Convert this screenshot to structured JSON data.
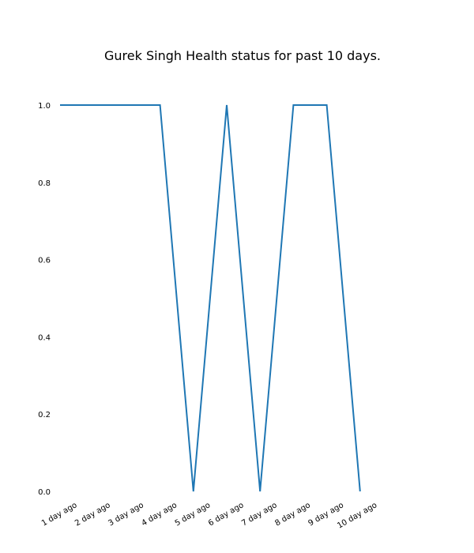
{
  "chart_data": {
    "type": "line",
    "title": "Gurek Singh Health status for past 10 days.",
    "xlabel": "",
    "ylabel": "",
    "categories": [
      "1 day ago",
      "2 day ago",
      "3 day ago",
      "4 day ago",
      "5 day ago",
      "6 day ago",
      "7 day ago",
      "8 day ago",
      "9 day ago",
      "10 day ago"
    ],
    "yticks": [
      "0.0",
      "0.2",
      "0.4",
      "0.6",
      "0.8",
      "1.0"
    ],
    "ylim": [
      0,
      1
    ],
    "grid": false,
    "series": [
      {
        "values": [
          1,
          1,
          1,
          1,
          0,
          1,
          0,
          1,
          1,
          0
        ],
        "color": "#1f77b4"
      }
    ]
  }
}
